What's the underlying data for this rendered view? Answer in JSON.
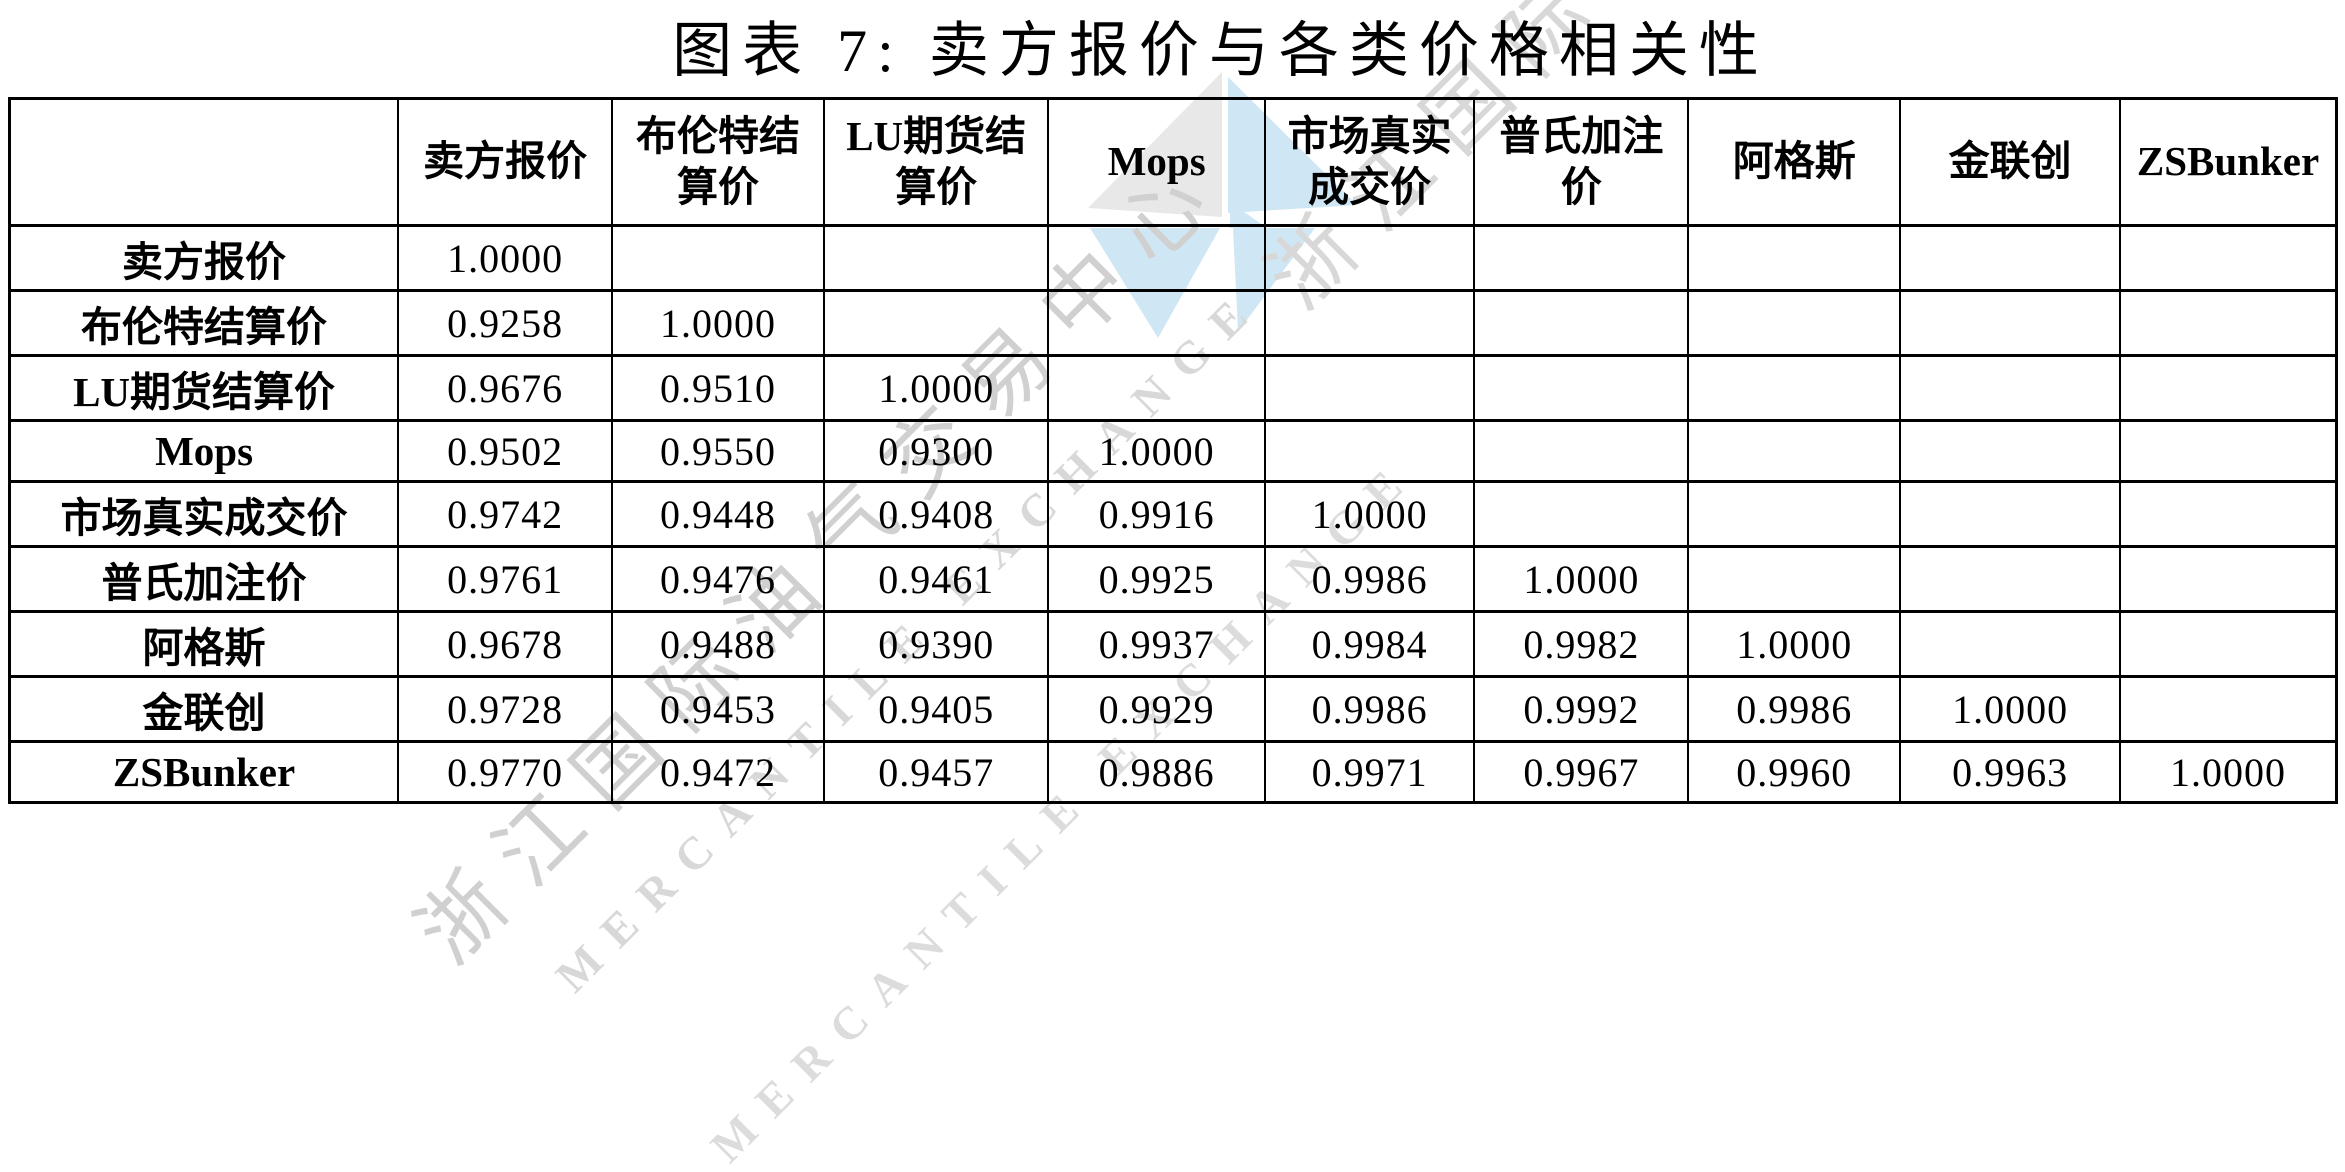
{
  "title": "图表 7: 卖方报价与各类价格相关性",
  "table": {
    "header": [
      "",
      "卖方报价",
      "布伦特结\n算价",
      "LU期货结\n算价",
      "Mops",
      "市场真实\n成交价",
      "普氏加注\n价",
      "阿格斯",
      "金联创",
      "ZSBunker"
    ],
    "rows": [
      {
        "label": "卖方报价",
        "values": [
          "1.0000",
          "",
          "",
          "",
          "",
          "",
          "",
          "",
          ""
        ]
      },
      {
        "label": "布伦特结算价",
        "values": [
          "0.9258",
          "1.0000",
          "",
          "",
          "",
          "",
          "",
          "",
          ""
        ]
      },
      {
        "label": "LU期货结算价",
        "values": [
          "0.9676",
          "0.9510",
          "1.0000",
          "",
          "",
          "",
          "",
          "",
          ""
        ]
      },
      {
        "label": "Mops",
        "values": [
          "0.9502",
          "0.9550",
          "0.9300",
          "1.0000",
          "",
          "",
          "",
          "",
          ""
        ]
      },
      {
        "label": "市场真实成交价",
        "values": [
          "0.9742",
          "0.9448",
          "0.9408",
          "0.9916",
          "1.0000",
          "",
          "",
          "",
          ""
        ]
      },
      {
        "label": "普氏加注价",
        "values": [
          "0.9761",
          "0.9476",
          "0.9461",
          "0.9925",
          "0.9986",
          "1.0000",
          "",
          "",
          ""
        ]
      },
      {
        "label": "阿格斯",
        "values": [
          "0.9678",
          "0.9488",
          "0.9390",
          "0.9937",
          "0.9984",
          "0.9982",
          "1.0000",
          "",
          ""
        ]
      },
      {
        "label": "金联创",
        "values": [
          "0.9728",
          "0.9453",
          "0.9405",
          "0.9929",
          "0.9986",
          "0.9992",
          "0.9986",
          "1.0000",
          ""
        ]
      },
      {
        "label": "ZSBunker",
        "values": [
          "0.9770",
          "0.9472",
          "0.9457",
          "0.9886",
          "0.9971",
          "0.9967",
          "0.9960",
          "0.9963",
          "1.0000"
        ]
      }
    ]
  },
  "watermark": {
    "cn_line": "浙江国际油气交易中心",
    "en_line": "MERCANTILE EXCHANGE",
    "logo_colors": {
      "gray": "#e8e8e8",
      "blue": "#cfe7f5"
    }
  },
  "chart_data": {
    "type": "table",
    "title": "图表 7: 卖方报价与各类价格相关性",
    "columns": [
      "卖方报价",
      "布伦特结算价",
      "LU期货结算价",
      "Mops",
      "市场真实成交价",
      "普氏加注价",
      "阿格斯",
      "金联创",
      "ZSBunker"
    ],
    "row_labels": [
      "卖方报价",
      "布伦特结算价",
      "LU期货结算价",
      "Mops",
      "市场真实成交价",
      "普氏加注价",
      "阿格斯",
      "金联创",
      "ZSBunker"
    ],
    "matrix": [
      [
        1.0,
        null,
        null,
        null,
        null,
        null,
        null,
        null,
        null
      ],
      [
        0.9258,
        1.0,
        null,
        null,
        null,
        null,
        null,
        null,
        null
      ],
      [
        0.9676,
        0.951,
        1.0,
        null,
        null,
        null,
        null,
        null,
        null
      ],
      [
        0.9502,
        0.955,
        0.93,
        1.0,
        null,
        null,
        null,
        null,
        null
      ],
      [
        0.9742,
        0.9448,
        0.9408,
        0.9916,
        1.0,
        null,
        null,
        null,
        null
      ],
      [
        0.9761,
        0.9476,
        0.9461,
        0.9925,
        0.9986,
        1.0,
        null,
        null,
        null
      ],
      [
        0.9678,
        0.9488,
        0.939,
        0.9937,
        0.9984,
        0.9982,
        1.0,
        null,
        null
      ],
      [
        0.9728,
        0.9453,
        0.9405,
        0.9929,
        0.9986,
        0.9992,
        0.9986,
        1.0,
        null
      ],
      [
        0.977,
        0.9472,
        0.9457,
        0.9886,
        0.9971,
        0.9967,
        0.996,
        0.9963,
        1.0
      ]
    ]
  }
}
